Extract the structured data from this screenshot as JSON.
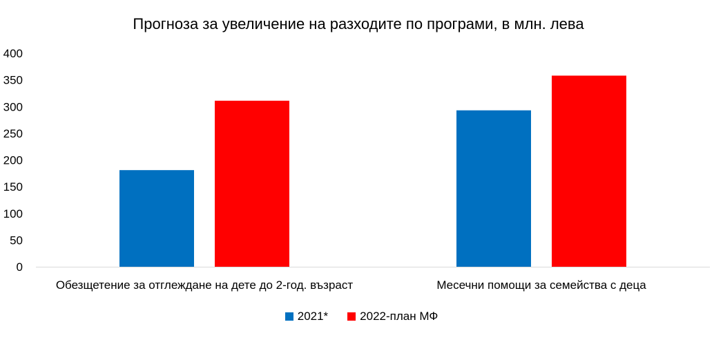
{
  "chart_data": {
    "type": "bar",
    "title": "Прогноза за увеличение на разходите по програми, в млн. лева",
    "categories": [
      "Обезщетение за отглеждане на дете до 2-год. възраст",
      "Месечни помощи за семейства с деца"
    ],
    "series": [
      {
        "name": "2021*",
        "color": "#0070C0",
        "values": [
          181,
          293
        ]
      },
      {
        "name": "2022-план МФ",
        "color": "#FF0000",
        "values": [
          311,
          358
        ]
      }
    ],
    "ylim": [
      0,
      400
    ],
    "yticks": [
      0,
      50,
      100,
      150,
      200,
      250,
      300,
      350,
      400
    ],
    "grid": false,
    "legend_position": "bottom"
  }
}
